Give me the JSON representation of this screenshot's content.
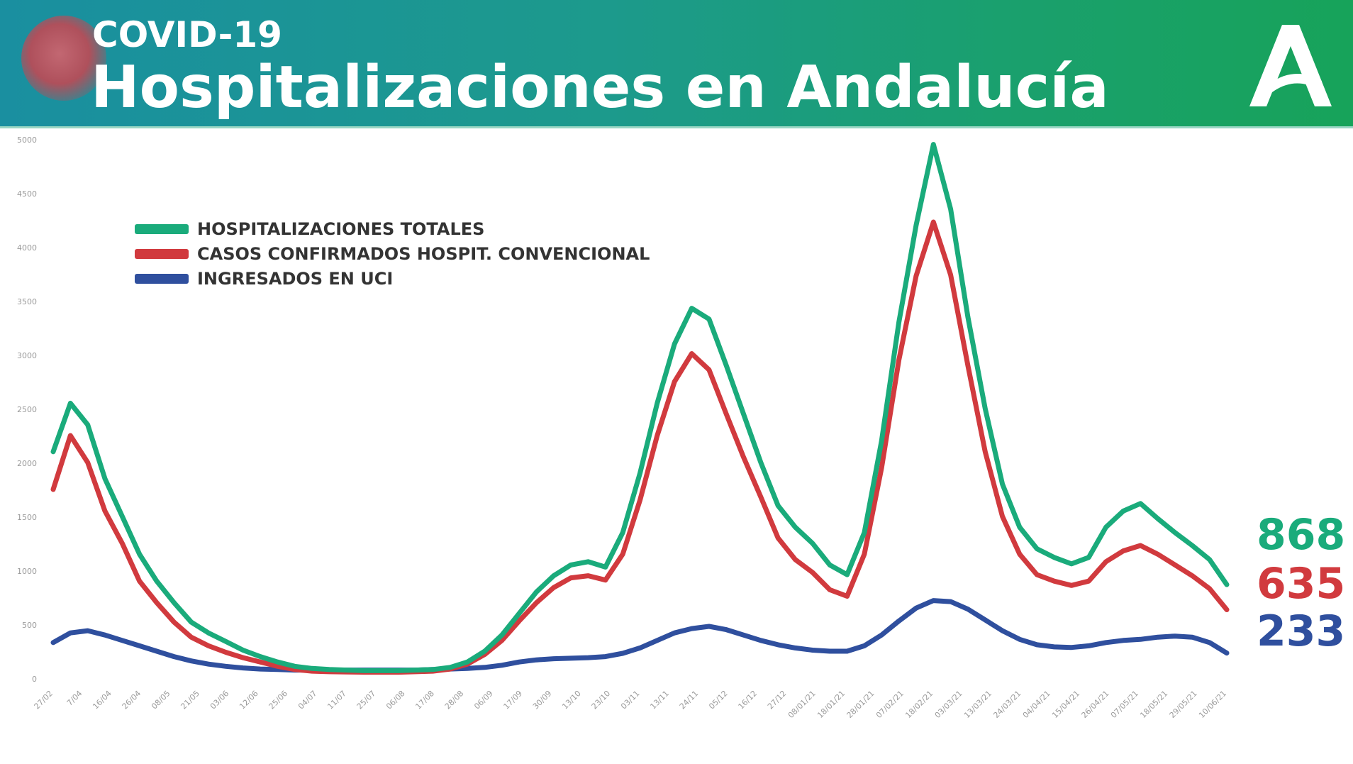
{
  "header": {
    "kicker": "COVID-19",
    "title": "Hospitalizaciones en Andalucía"
  },
  "colors": {
    "header_gradient_start": "#1a8fa0",
    "header_gradient_end": "#17a35a",
    "total": "#1aab7b",
    "convencional": "#d13a3e",
    "uci": "#2f4f9e"
  },
  "icons": {
    "logo": "junta-de-andalucia-logo",
    "badge": "coronavirus-icon"
  },
  "chart_data": {
    "type": "line",
    "grid": false,
    "legend_position": "top-left",
    "ylim": [
      0,
      5000
    ],
    "y_ticks": [
      0,
      500,
      1000,
      1500,
      2000,
      2500,
      3000,
      3500,
      4000,
      4500,
      5000
    ],
    "x_tick_labels": [
      "27/02",
      "7/04",
      "16/04",
      "26/04",
      "08/05",
      "21/05",
      "03/06",
      "12/06",
      "25/06",
      "04/07",
      "11/07",
      "25/07",
      "06/08",
      "17/08",
      "28/08",
      "06/09",
      "17/09",
      "30/09",
      "13/10",
      "23/10",
      "03/11",
      "13/11",
      "24/11",
      "05/12",
      "16/12",
      "27/12",
      "08/01/21",
      "18/01/21",
      "28/01/21",
      "07/02/21",
      "18/02/21",
      "03/03/21",
      "13/03/21",
      "24/03/21",
      "04/04/21",
      "15/04/21",
      "26/04/21",
      "07/05/21",
      "18/05/21",
      "29/05/21",
      "10/06/21"
    ],
    "series": [
      {
        "name": "HOSPITALIZACIONES TOTALES",
        "color": "#1aab7b",
        "end_value": 868,
        "values": [
          2100,
          2550,
          2350,
          1850,
          1500,
          1150,
          900,
          700,
          520,
          420,
          340,
          260,
          200,
          150,
          110,
          90,
          80,
          75,
          70,
          70,
          70,
          75,
          80,
          100,
          150,
          250,
          400,
          600,
          800,
          950,
          1050,
          1080,
          1030,
          1350,
          1900,
          2550,
          3100,
          3430,
          3330,
          2900,
          2450,
          2000,
          1600,
          1400,
          1250,
          1050,
          960,
          1350,
          2200,
          3300,
          4200,
          4950,
          4350,
          3350,
          2500,
          1800,
          1400,
          1200,
          1120,
          1060,
          1120,
          1400,
          1550,
          1620,
          1480,
          1350,
          1230,
          1100,
          868
        ]
      },
      {
        "name": "CASOS CONFIRMADOS HOSPIT. CONVENCIONAL",
        "color": "#d13a3e",
        "end_value": 635,
        "values": [
          1750,
          2250,
          2000,
          1550,
          1250,
          900,
          700,
          520,
          380,
          300,
          240,
          190,
          150,
          110,
          80,
          65,
          60,
          58,
          55,
          55,
          55,
          60,
          65,
          85,
          130,
          220,
          350,
          530,
          700,
          840,
          930,
          950,
          910,
          1150,
          1650,
          2250,
          2750,
          3010,
          2860,
          2450,
          2050,
          1680,
          1300,
          1100,
          980,
          820,
          760,
          1150,
          1950,
          2950,
          3730,
          4230,
          3740,
          2900,
          2100,
          1500,
          1150,
          960,
          900,
          860,
          900,
          1080,
          1180,
          1230,
          1150,
          1050,
          950,
          830,
          635
        ]
      },
      {
        "name": "INGRESADOS EN UCI",
        "color": "#2f4f9e",
        "end_value": 233,
        "values": [
          330,
          420,
          440,
          400,
          350,
          300,
          250,
          200,
          160,
          130,
          110,
          95,
          85,
          80,
          75,
          75,
          75,
          75,
          75,
          75,
          75,
          75,
          80,
          85,
          90,
          100,
          120,
          150,
          170,
          180,
          185,
          190,
          200,
          230,
          280,
          350,
          420,
          460,
          480,
          450,
          400,
          350,
          310,
          280,
          260,
          250,
          250,
          300,
          400,
          530,
          650,
          720,
          710,
          640,
          540,
          440,
          360,
          310,
          290,
          285,
          300,
          330,
          350,
          360,
          380,
          390,
          380,
          330,
          233
        ]
      }
    ]
  }
}
